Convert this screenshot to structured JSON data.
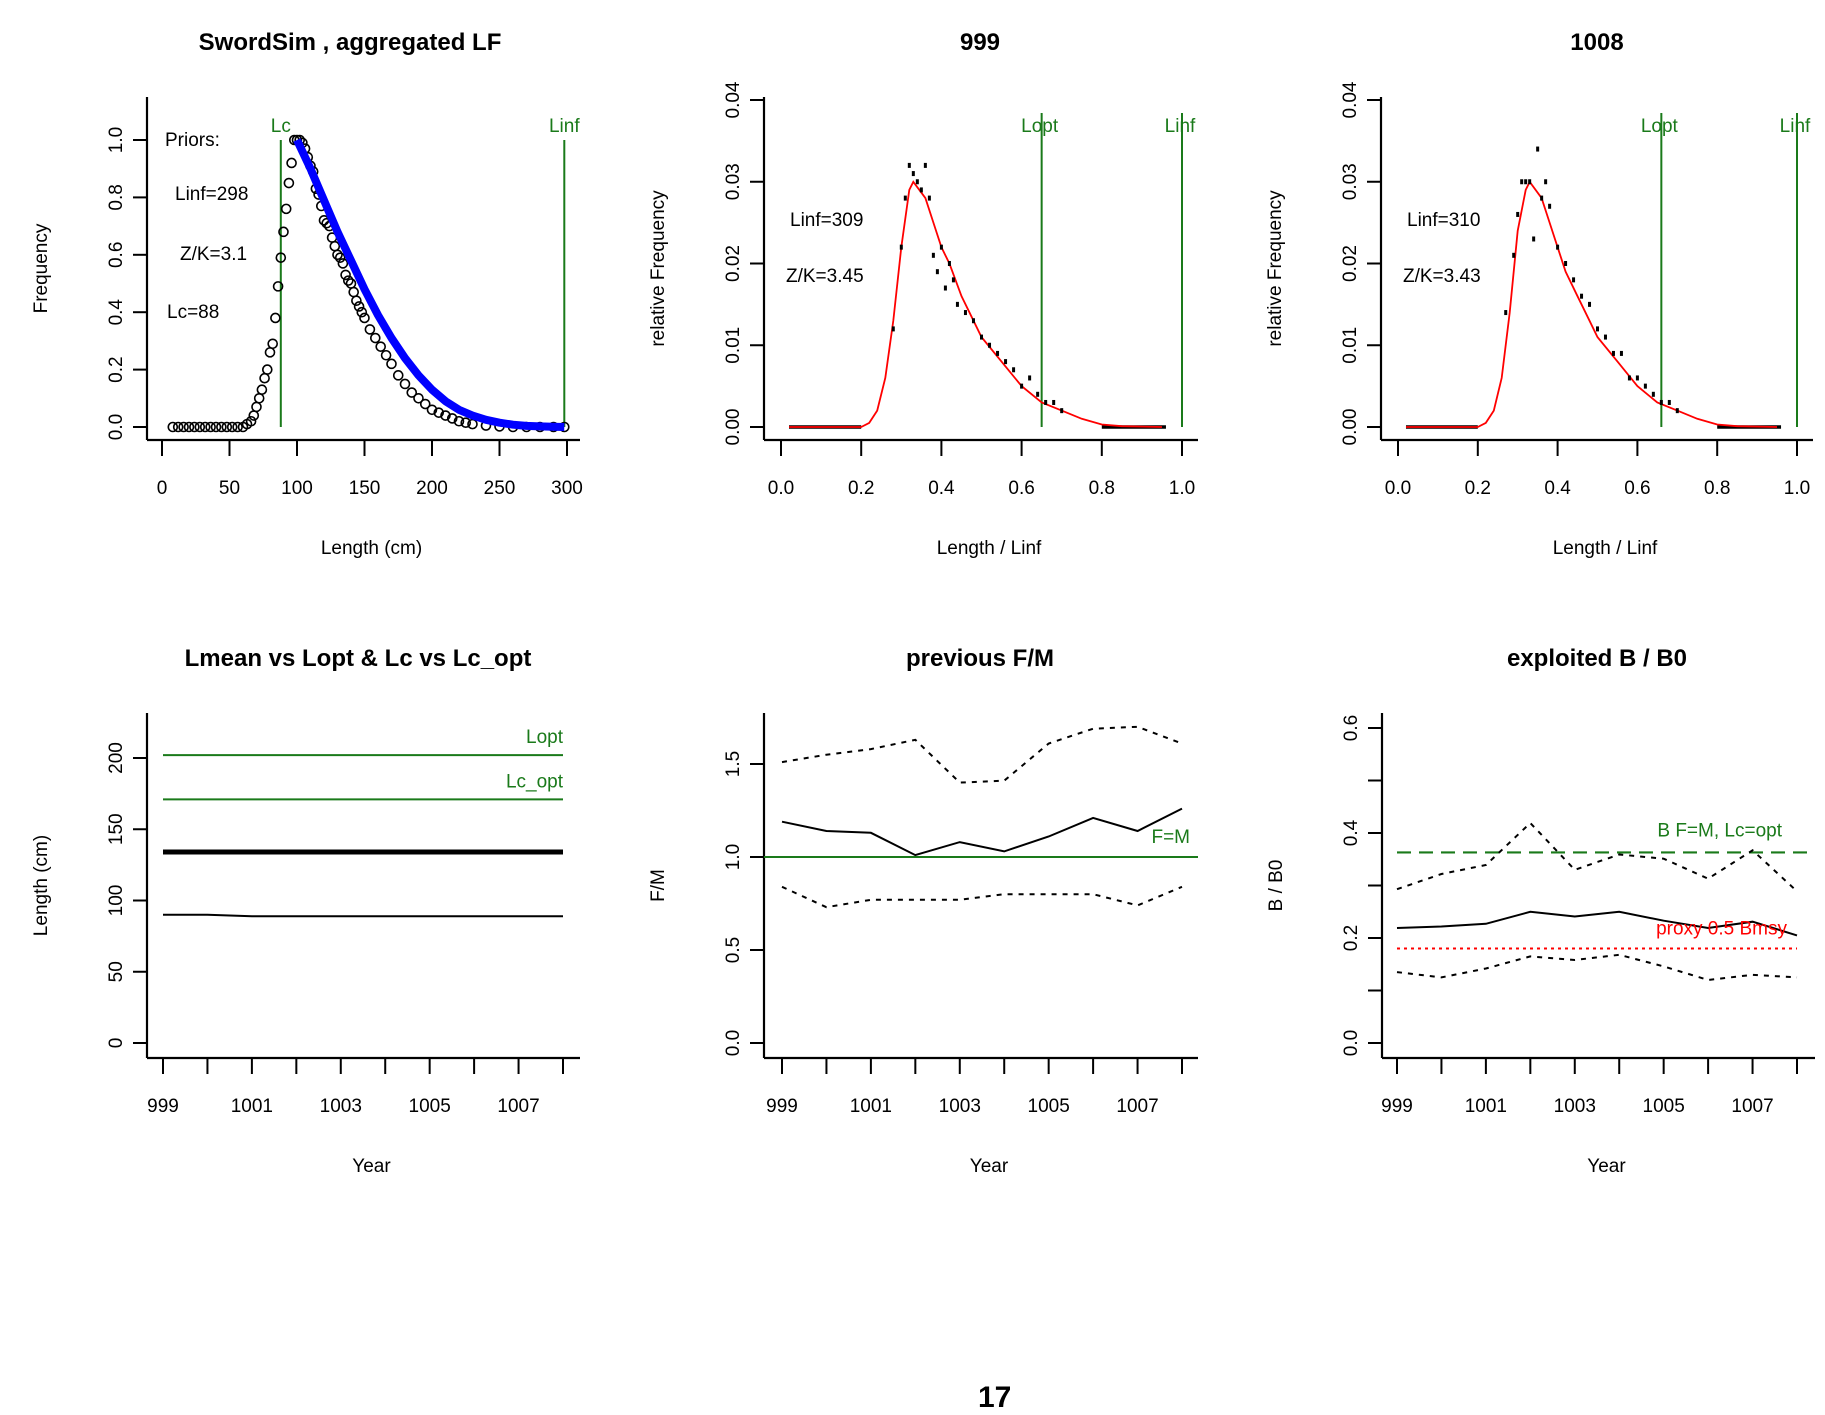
{
  "page_number": "17",
  "colors": {
    "ref_line": "#1a7a1a",
    "fit_blue": "#0000ff",
    "fit_red": "#ff0000",
    "axis": "#000000"
  },
  "chart_data": [
    {
      "id": "aggregated-lf",
      "type": "scatter",
      "title": "SwordSim , aggregated LF",
      "xlabel": "Length (cm)",
      "ylabel": "Frequency",
      "xlim": [
        0,
        300
      ],
      "ylim": [
        0,
        1.1
      ],
      "xticks": [
        0,
        50,
        100,
        150,
        200,
        250,
        300
      ],
      "yticks": [
        0.0,
        0.2,
        0.4,
        0.6,
        0.8,
        1.0
      ],
      "ytick_labels": [
        "0.0",
        "0.2",
        "0.4",
        "0.6",
        "0.8",
        "1.0"
      ],
      "annotations": [
        "Priors:",
        "Linf=298",
        "Z/K=3.1",
        "Lc=88"
      ],
      "vlines": [
        {
          "label": "Lc",
          "x": 88
        },
        {
          "label": "Linf",
          "x": 298
        }
      ],
      "observed": {
        "x": [
          8,
          12,
          16,
          20,
          24,
          28,
          32,
          36,
          40,
          44,
          48,
          52,
          56,
          60,
          63,
          66,
          68,
          70,
          72,
          74,
          76,
          78,
          80,
          82,
          84,
          86,
          88,
          90,
          92,
          94,
          96,
          98,
          100,
          102,
          104,
          106,
          108,
          110,
          112,
          114,
          116,
          118,
          120,
          122,
          124,
          126,
          128,
          130,
          132,
          134,
          136,
          138,
          140,
          142,
          144,
          146,
          148,
          150,
          154,
          158,
          162,
          166,
          170,
          175,
          180,
          185,
          190,
          195,
          200,
          205,
          210,
          215,
          220,
          225,
          230,
          240,
          250,
          260,
          270,
          280,
          290,
          298
        ],
        "y": [
          0,
          0,
          0,
          0,
          0,
          0,
          0,
          0,
          0,
          0,
          0,
          0,
          0,
          0,
          0.01,
          0.02,
          0.04,
          0.07,
          0.1,
          0.13,
          0.17,
          0.2,
          0.26,
          0.29,
          0.38,
          0.49,
          0.59,
          0.68,
          0.76,
          0.85,
          0.92,
          1.0,
          1.0,
          1.0,
          0.99,
          0.97,
          0.94,
          0.91,
          0.89,
          0.83,
          0.81,
          0.77,
          0.72,
          0.71,
          0.7,
          0.66,
          0.63,
          0.6,
          0.59,
          0.57,
          0.53,
          0.51,
          0.5,
          0.47,
          0.44,
          0.42,
          0.4,
          0.38,
          0.34,
          0.31,
          0.28,
          0.25,
          0.22,
          0.18,
          0.15,
          0.12,
          0.1,
          0.08,
          0.06,
          0.05,
          0.04,
          0.03,
          0.02,
          0.015,
          0.01,
          0.005,
          0.002,
          0,
          0,
          0,
          0,
          0
        ]
      },
      "fit": {
        "x": [
          100,
          110,
          120,
          130,
          140,
          150,
          160,
          170,
          180,
          190,
          200,
          210,
          220,
          230,
          240,
          250,
          260,
          270,
          280,
          290,
          298
        ],
        "y": [
          1.0,
          0.9,
          0.79,
          0.68,
          0.58,
          0.48,
          0.39,
          0.31,
          0.24,
          0.18,
          0.13,
          0.09,
          0.06,
          0.04,
          0.025,
          0.015,
          0.008,
          0.004,
          0.002,
          0.001,
          0
        ]
      }
    },
    {
      "id": "year-999",
      "type": "line",
      "title": "999",
      "xlabel": "Length / Linf",
      "ylabel": "relative Frequency",
      "xlim": [
        0,
        1.0
      ],
      "ylim": [
        0,
        0.04
      ],
      "xticks": [
        0.0,
        0.2,
        0.4,
        0.6,
        0.8,
        1.0
      ],
      "xtick_labels": [
        "0.0",
        "0.2",
        "0.4",
        "0.6",
        "0.8",
        "1.0"
      ],
      "yticks": [
        0.0,
        0.01,
        0.02,
        0.03,
        0.04
      ],
      "ytick_labels": [
        "0.00",
        "0.01",
        "0.02",
        "0.03",
        "0.04"
      ],
      "annotations": [
        "Linf=309",
        "Z/K=3.45"
      ],
      "vlines": [
        {
          "label": "Lopt",
          "x": 0.65
        },
        {
          "label": "Linf",
          "x": 1.0
        }
      ],
      "fit": {
        "x": [
          0.02,
          0.1,
          0.2,
          0.22,
          0.24,
          0.26,
          0.28,
          0.3,
          0.32,
          0.33,
          0.36,
          0.38,
          0.4,
          0.42,
          0.45,
          0.48,
          0.5,
          0.55,
          0.6,
          0.65,
          0.7,
          0.75,
          0.8,
          0.85,
          0.95
        ],
        "y": [
          0,
          0,
          0,
          0.0005,
          0.002,
          0.006,
          0.013,
          0.022,
          0.029,
          0.03,
          0.028,
          0.025,
          0.022,
          0.02,
          0.016,
          0.013,
          0.011,
          0.008,
          0.005,
          0.003,
          0.002,
          0.001,
          0.0003,
          0.0001,
          0
        ]
      },
      "observed": {
        "x": [
          0.28,
          0.3,
          0.31,
          0.32,
          0.33,
          0.34,
          0.35,
          0.36,
          0.37,
          0.38,
          0.39,
          0.4,
          0.41,
          0.42,
          0.43,
          0.44,
          0.46,
          0.48,
          0.5,
          0.52,
          0.54,
          0.56,
          0.58,
          0.6,
          0.62,
          0.64,
          0.66,
          0.68,
          0.7
        ],
        "y": [
          0.012,
          0.022,
          0.028,
          0.032,
          0.031,
          0.03,
          0.029,
          0.032,
          0.028,
          0.021,
          0.019,
          0.022,
          0.017,
          0.02,
          0.018,
          0.015,
          0.014,
          0.013,
          0.011,
          0.01,
          0.009,
          0.008,
          0.007,
          0.005,
          0.006,
          0.004,
          0.003,
          0.003,
          0.002
        ]
      }
    },
    {
      "id": "year-1008",
      "type": "line",
      "title": "1008",
      "xlabel": "Length / Linf",
      "ylabel": "relative Frequency",
      "xlim": [
        0,
        1.0
      ],
      "ylim": [
        0,
        0.04
      ],
      "xticks": [
        0.0,
        0.2,
        0.4,
        0.6,
        0.8,
        1.0
      ],
      "xtick_labels": [
        "0.0",
        "0.2",
        "0.4",
        "0.6",
        "0.8",
        "1.0"
      ],
      "yticks": [
        0.0,
        0.01,
        0.02,
        0.03,
        0.04
      ],
      "ytick_labels": [
        "0.00",
        "0.01",
        "0.02",
        "0.03",
        "0.04"
      ],
      "annotations": [
        "Linf=310",
        "Z/K=3.43"
      ],
      "vlines": [
        {
          "label": "Lopt",
          "x": 0.66
        },
        {
          "label": "Linf",
          "x": 1.0
        }
      ],
      "fit": {
        "x": [
          0.02,
          0.1,
          0.2,
          0.22,
          0.24,
          0.26,
          0.28,
          0.3,
          0.32,
          0.33,
          0.36,
          0.38,
          0.4,
          0.42,
          0.45,
          0.48,
          0.5,
          0.55,
          0.6,
          0.65,
          0.7,
          0.75,
          0.8,
          0.85,
          0.95
        ],
        "y": [
          0,
          0,
          0,
          0.0005,
          0.002,
          0.006,
          0.014,
          0.024,
          0.029,
          0.03,
          0.028,
          0.025,
          0.022,
          0.019,
          0.016,
          0.013,
          0.011,
          0.008,
          0.005,
          0.003,
          0.002,
          0.001,
          0.0003,
          0.0001,
          0
        ]
      },
      "observed": {
        "x": [
          0.27,
          0.29,
          0.3,
          0.31,
          0.32,
          0.33,
          0.34,
          0.35,
          0.36,
          0.37,
          0.38,
          0.4,
          0.42,
          0.44,
          0.46,
          0.48,
          0.5,
          0.52,
          0.54,
          0.56,
          0.58,
          0.6,
          0.62,
          0.64,
          0.66,
          0.68,
          0.7
        ],
        "y": [
          0.014,
          0.021,
          0.026,
          0.03,
          0.03,
          0.03,
          0.023,
          0.034,
          0.028,
          0.03,
          0.027,
          0.022,
          0.02,
          0.018,
          0.016,
          0.015,
          0.012,
          0.011,
          0.009,
          0.009,
          0.006,
          0.006,
          0.005,
          0.004,
          0.003,
          0.003,
          0.002
        ]
      }
    },
    {
      "id": "lmean-lopt",
      "type": "line",
      "title": "Lmean vs Lopt & Lc vs Lc_opt",
      "xlabel": "Year",
      "ylabel": "Length (cm)",
      "xlim": [
        999,
        1008
      ],
      "ylim": [
        0,
        230
      ],
      "x": [
        999,
        1000,
        1001,
        1002,
        1003,
        1004,
        1005,
        1006,
        1007,
        1008
      ],
      "xticks": [
        999,
        1000,
        1001,
        1002,
        1003,
        1004,
        1005,
        1006,
        1007,
        1008
      ],
      "xtick_labels": [
        "999",
        "",
        "1001",
        "",
        "1003",
        "",
        "1005",
        "",
        "1007",
        ""
      ],
      "yticks": [
        0,
        50,
        100,
        150,
        200
      ],
      "ytick_labels": [
        "0",
        "50",
        "100",
        "150",
        "200"
      ],
      "hlines": [
        {
          "label": "Lopt",
          "y": 202,
          "color": "green"
        },
        {
          "label": "Lc_opt",
          "y": 171,
          "color": "green"
        }
      ],
      "series": [
        {
          "name": "Lmean",
          "style": "thick-solid",
          "values": [
            134,
            134,
            134,
            134,
            134,
            134,
            134,
            134,
            134,
            134
          ]
        },
        {
          "name": "Lc",
          "style": "solid",
          "values": [
            90,
            90,
            89,
            89,
            89,
            89,
            89,
            89,
            89,
            89
          ]
        }
      ]
    },
    {
      "id": "previous-fm",
      "type": "line",
      "title": "previous F/M",
      "xlabel": "Year",
      "ylabel": "F/M",
      "xlim": [
        999,
        1008
      ],
      "ylim": [
        0,
        1.8
      ],
      "x": [
        999,
        1000,
        1001,
        1002,
        1003,
        1004,
        1005,
        1006,
        1007,
        1008
      ],
      "xticks": [
        999,
        1000,
        1001,
        1002,
        1003,
        1004,
        1005,
        1006,
        1007,
        1008
      ],
      "xtick_labels": [
        "999",
        "",
        "1001",
        "",
        "1003",
        "",
        "1005",
        "",
        "1007",
        ""
      ],
      "yticks": [
        0.0,
        0.5,
        1.0,
        1.5
      ],
      "ytick_labels": [
        "0.0",
        "0.5",
        "1.0",
        "1.5"
      ],
      "hlines": [
        {
          "label": "F=M",
          "y": 1.0,
          "color": "green"
        }
      ],
      "series": [
        {
          "name": "F/M",
          "style": "solid",
          "values": [
            1.19,
            1.14,
            1.13,
            1.01,
            1.08,
            1.03,
            1.11,
            1.21,
            1.14,
            1.26
          ]
        },
        {
          "name": "upper",
          "style": "dotted",
          "values": [
            1.51,
            1.55,
            1.58,
            1.63,
            1.4,
            1.41,
            1.61,
            1.69,
            1.7,
            1.61
          ]
        },
        {
          "name": "lower",
          "style": "dotted",
          "values": [
            0.84,
            0.73,
            0.77,
            0.77,
            0.77,
            0.8,
            0.8,
            0.8,
            0.74,
            0.84
          ]
        }
      ]
    },
    {
      "id": "exploited-b-b0",
      "type": "line",
      "title": "exploited B / B0",
      "xlabel": "Year",
      "ylabel": "B / B0",
      "xlim": [
        999,
        1008
      ],
      "ylim": [
        0,
        0.62
      ],
      "x": [
        999,
        1000,
        1001,
        1002,
        1003,
        1004,
        1005,
        1006,
        1007,
        1008
      ],
      "xticks": [
        999,
        1000,
        1001,
        1002,
        1003,
        1004,
        1005,
        1006,
        1007,
        1008
      ],
      "xtick_labels": [
        "999",
        "",
        "1001",
        "",
        "1003",
        "",
        "1005",
        "",
        "1007",
        ""
      ],
      "yticks": [
        0.0,
        0.1,
        0.2,
        0.3,
        0.4,
        0.5,
        0.6
      ],
      "ytick_labels": [
        "0.0",
        "",
        "0.2",
        "",
        "0.4",
        "",
        "0.6"
      ],
      "hlines": [
        {
          "label": "B F=M, Lc=opt",
          "y": 0.363,
          "color": "green",
          "style": "dashed"
        },
        {
          "label": "proxy 0.5 Bmsy",
          "y": 0.18,
          "color": "red",
          "style": "dotted"
        }
      ],
      "series": [
        {
          "name": "B/B0",
          "style": "solid",
          "values": [
            0.219,
            0.222,
            0.227,
            0.25,
            0.241,
            0.25,
            0.233,
            0.219,
            0.231,
            0.205
          ]
        },
        {
          "name": "upper",
          "style": "dotted",
          "values": [
            0.293,
            0.322,
            0.339,
            0.419,
            0.33,
            0.359,
            0.351,
            0.313,
            0.367,
            0.289
          ]
        },
        {
          "name": "lower",
          "style": "dotted",
          "values": [
            0.135,
            0.125,
            0.142,
            0.165,
            0.158,
            0.168,
            0.146,
            0.12,
            0.13,
            0.125
          ]
        }
      ]
    }
  ]
}
